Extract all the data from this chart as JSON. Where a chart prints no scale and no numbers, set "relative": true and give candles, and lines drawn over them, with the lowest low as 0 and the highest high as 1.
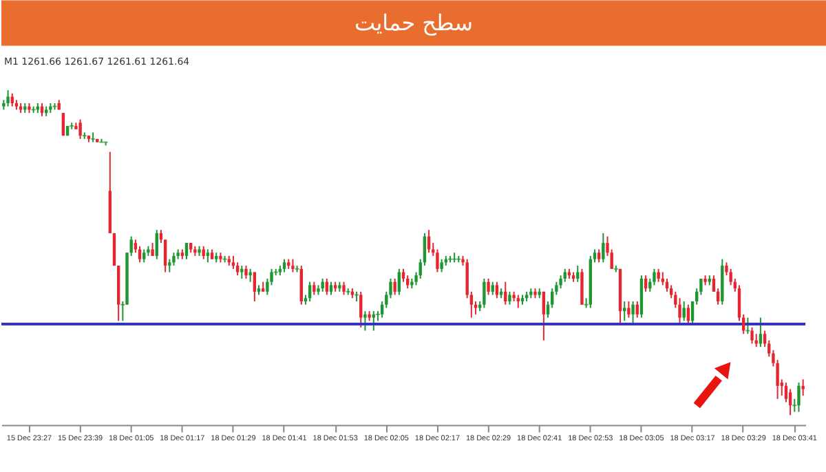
{
  "chart_data": {
    "type": "candlestick",
    "title": "سطح حمایت",
    "relative": true,
    "annotations": [
      "M1 1261.66 1261.67 1261.61 1261.64"
    ],
    "ref_lines": [
      {
        "axis": "y",
        "value": 0.28,
        "color": "#3333cc"
      }
    ],
    "categories": [
      null,
      null,
      null,
      null,
      null,
      null,
      "15 Dec 23:27",
      null,
      null,
      null,
      null,
      null,
      null,
      null,
      null,
      null,
      null,
      null,
      "15 Dec 23:39",
      null,
      null,
      null,
      null,
      null,
      null,
      null,
      null,
      null,
      null,
      null,
      "18 Dec 01:05",
      null,
      null,
      null,
      null,
      null,
      null,
      null,
      null,
      null,
      null,
      null,
      "18 Dec 01:17",
      null,
      null,
      null,
      null,
      null,
      null,
      null,
      null,
      null,
      null,
      null,
      "18 Dec 01:29",
      null,
      null,
      null,
      null,
      null,
      null,
      null,
      null,
      null,
      null,
      null,
      "18 Dec 01:41",
      null,
      null,
      null,
      null,
      null,
      null,
      null,
      null,
      null,
      null,
      null,
      "18 Dec 01:53",
      null,
      null,
      null,
      null,
      null,
      null,
      null,
      null,
      null,
      null,
      null,
      "18 Dec 02:05",
      null,
      null,
      null,
      null,
      null,
      null,
      null,
      null,
      null,
      null,
      null,
      "18 Dec 02:17",
      null,
      null,
      null,
      null,
      null,
      null,
      null,
      null,
      null,
      null,
      null,
      "18 Dec 02:29",
      null,
      null,
      null,
      null,
      null,
      null,
      null,
      null,
      null,
      null,
      null,
      "18 Dec 02:41",
      null,
      null,
      null,
      null,
      null,
      null,
      null,
      null,
      null,
      null,
      null,
      "18 Dec 02:53",
      null,
      null,
      null,
      null,
      null,
      null,
      null,
      null,
      null,
      null,
      null,
      "18 Dec 03:05",
      null,
      null,
      null,
      null,
      null,
      null,
      null,
      null,
      null,
      null,
      null,
      "18 Dec 03:17",
      null,
      null,
      null,
      null,
      null,
      null,
      null,
      null,
      null,
      null,
      null,
      "18 Dec 03:29",
      null,
      null,
      null,
      null,
      null,
      null,
      null,
      null,
      null,
      null,
      null,
      "18 Dec 03:41",
      null,
      null
    ],
    "ohlc": [
      [
        0.95,
        0.97,
        0.94,
        0.96
      ],
      [
        0.96,
        1.0,
        0.95,
        0.98
      ],
      [
        0.98,
        0.99,
        0.95,
        0.96
      ],
      [
        0.96,
        0.97,
        0.94,
        0.95
      ],
      [
        0.95,
        0.96,
        0.93,
        0.94
      ],
      [
        0.94,
        0.96,
        0.93,
        0.95
      ],
      [
        0.95,
        0.96,
        0.93,
        0.94
      ],
      [
        0.94,
        0.95,
        0.93,
        0.94
      ],
      [
        0.94,
        0.96,
        0.93,
        0.95
      ],
      [
        0.95,
        0.96,
        0.92,
        0.93
      ],
      [
        0.93,
        0.95,
        0.92,
        0.94
      ],
      [
        0.94,
        0.96,
        0.93,
        0.95
      ],
      [
        0.95,
        0.96,
        0.94,
        0.95
      ],
      [
        0.96,
        0.97,
        0.94,
        0.94
      ],
      [
        0.93,
        0.93,
        0.86,
        0.86
      ],
      [
        0.86,
        0.89,
        0.86,
        0.89
      ],
      [
        0.89,
        0.9,
        0.88,
        0.89
      ],
      [
        0.89,
        0.9,
        0.88,
        0.88
      ],
      [
        0.9,
        0.91,
        0.85,
        0.86
      ],
      [
        0.86,
        0.87,
        0.85,
        0.86
      ],
      [
        0.86,
        0.86,
        0.84,
        0.85
      ],
      [
        0.85,
        0.87,
        0.84,
        0.85
      ],
      [
        0.85,
        0.85,
        0.84,
        0.84
      ],
      [
        0.84,
        0.85,
        0.84,
        0.84
      ],
      [
        0.84,
        0.84,
        0.83,
        0.84
      ],
      [
        0.69,
        0.81,
        0.56,
        0.56
      ],
      [
        0.56,
        0.56,
        0.46,
        0.46
      ],
      [
        0.46,
        0.46,
        0.29,
        0.34
      ],
      [
        0.34,
        0.35,
        0.29,
        0.34
      ],
      [
        0.34,
        0.5,
        0.34,
        0.5
      ],
      [
        0.5,
        0.55,
        0.49,
        0.54
      ],
      [
        0.53,
        0.54,
        0.5,
        0.51
      ],
      [
        0.51,
        0.52,
        0.47,
        0.48
      ],
      [
        0.48,
        0.51,
        0.47,
        0.5
      ],
      [
        0.5,
        0.52,
        0.49,
        0.51
      ],
      [
        0.51,
        0.53,
        0.49,
        0.49
      ],
      [
        0.49,
        0.57,
        0.48,
        0.56
      ],
      [
        0.56,
        0.57,
        0.53,
        0.54
      ],
      [
        0.54,
        0.54,
        0.44,
        0.46
      ],
      [
        0.46,
        0.48,
        0.44,
        0.47
      ],
      [
        0.47,
        0.5,
        0.46,
        0.49
      ],
      [
        0.49,
        0.51,
        0.48,
        0.5
      ],
      [
        0.5,
        0.51,
        0.48,
        0.49
      ],
      [
        0.49,
        0.53,
        0.48,
        0.53
      ],
      [
        0.53,
        0.53,
        0.5,
        0.51
      ],
      [
        0.51,
        0.52,
        0.49,
        0.5
      ],
      [
        0.5,
        0.52,
        0.49,
        0.51
      ],
      [
        0.51,
        0.52,
        0.48,
        0.49
      ],
      [
        0.49,
        0.51,
        0.47,
        0.5
      ],
      [
        0.5,
        0.51,
        0.48,
        0.48
      ],
      [
        0.48,
        0.5,
        0.47,
        0.49
      ],
      [
        0.49,
        0.5,
        0.47,
        0.48
      ],
      [
        0.48,
        0.49,
        0.47,
        0.48
      ],
      [
        0.48,
        0.49,
        0.46,
        0.47
      ],
      [
        0.47,
        0.49,
        0.45,
        0.46
      ],
      [
        0.46,
        0.47,
        0.43,
        0.44
      ],
      [
        0.44,
        0.46,
        0.42,
        0.45
      ],
      [
        0.45,
        0.46,
        0.42,
        0.43
      ],
      [
        0.43,
        0.45,
        0.41,
        0.44
      ],
      [
        0.44,
        0.44,
        0.35,
        0.38
      ],
      [
        0.38,
        0.4,
        0.37,
        0.39
      ],
      [
        0.39,
        0.41,
        0.38,
        0.38
      ],
      [
        0.38,
        0.42,
        0.37,
        0.41
      ],
      [
        0.41,
        0.45,
        0.4,
        0.44
      ],
      [
        0.44,
        0.45,
        0.43,
        0.44
      ],
      [
        0.44,
        0.46,
        0.43,
        0.45
      ],
      [
        0.45,
        0.48,
        0.44,
        0.47
      ],
      [
        0.47,
        0.48,
        0.45,
        0.46
      ],
      [
        0.46,
        0.48,
        0.44,
        0.45
      ],
      [
        0.45,
        0.46,
        0.44,
        0.45
      ],
      [
        0.45,
        0.46,
        0.34,
        0.35
      ],
      [
        0.35,
        0.37,
        0.34,
        0.36
      ],
      [
        0.36,
        0.41,
        0.35,
        0.4
      ],
      [
        0.4,
        0.41,
        0.37,
        0.38
      ],
      [
        0.38,
        0.4,
        0.37,
        0.39
      ],
      [
        0.39,
        0.42,
        0.38,
        0.41
      ],
      [
        0.41,
        0.42,
        0.37,
        0.38
      ],
      [
        0.38,
        0.41,
        0.37,
        0.4
      ],
      [
        0.4,
        0.41,
        0.38,
        0.39
      ],
      [
        0.39,
        0.41,
        0.38,
        0.4
      ],
      [
        0.4,
        0.41,
        0.37,
        0.38
      ],
      [
        0.38,
        0.39,
        0.37,
        0.38
      ],
      [
        0.38,
        0.39,
        0.36,
        0.37
      ],
      [
        0.37,
        0.38,
        0.35,
        0.37
      ],
      [
        0.37,
        0.38,
        0.27,
        0.3
      ],
      [
        0.3,
        0.32,
        0.26,
        0.31
      ],
      [
        0.31,
        0.32,
        0.29,
        0.3
      ],
      [
        0.3,
        0.32,
        0.26,
        0.31
      ],
      [
        0.31,
        0.32,
        0.29,
        0.31
      ],
      [
        0.31,
        0.35,
        0.3,
        0.34
      ],
      [
        0.34,
        0.38,
        0.33,
        0.37
      ],
      [
        0.37,
        0.42,
        0.36,
        0.41
      ],
      [
        0.41,
        0.42,
        0.37,
        0.38
      ],
      [
        0.38,
        0.45,
        0.37,
        0.44
      ],
      [
        0.44,
        0.45,
        0.41,
        0.42
      ],
      [
        0.42,
        0.43,
        0.39,
        0.4
      ],
      [
        0.4,
        0.42,
        0.39,
        0.41
      ],
      [
        0.41,
        0.44,
        0.4,
        0.43
      ],
      [
        0.43,
        0.48,
        0.42,
        0.47
      ],
      [
        0.47,
        0.56,
        0.46,
        0.55
      ],
      [
        0.55,
        0.57,
        0.5,
        0.51
      ],
      [
        0.51,
        0.53,
        0.49,
        0.5
      ],
      [
        0.5,
        0.51,
        0.44,
        0.45
      ],
      [
        0.45,
        0.48,
        0.44,
        0.47
      ],
      [
        0.47,
        0.49,
        0.46,
        0.48
      ],
      [
        0.48,
        0.49,
        0.47,
        0.48
      ],
      [
        0.48,
        0.5,
        0.47,
        0.48
      ],
      [
        0.48,
        0.49,
        0.47,
        0.48
      ],
      [
        0.48,
        0.49,
        0.46,
        0.47
      ],
      [
        0.47,
        0.48,
        0.36,
        0.37
      ],
      [
        0.37,
        0.38,
        0.3,
        0.34
      ],
      [
        0.34,
        0.35,
        0.31,
        0.33
      ],
      [
        0.33,
        0.35,
        0.32,
        0.34
      ],
      [
        0.34,
        0.42,
        0.33,
        0.41
      ],
      [
        0.41,
        0.42,
        0.37,
        0.38
      ],
      [
        0.38,
        0.41,
        0.37,
        0.4
      ],
      [
        0.4,
        0.41,
        0.36,
        0.37
      ],
      [
        0.37,
        0.39,
        0.36,
        0.38
      ],
      [
        0.38,
        0.41,
        0.34,
        0.35
      ],
      [
        0.35,
        0.38,
        0.34,
        0.37
      ],
      [
        0.37,
        0.38,
        0.35,
        0.36
      ],
      [
        0.36,
        0.37,
        0.33,
        0.35
      ],
      [
        0.35,
        0.37,
        0.34,
        0.36
      ],
      [
        0.36,
        0.38,
        0.35,
        0.37
      ],
      [
        0.37,
        0.39,
        0.36,
        0.38
      ],
      [
        0.38,
        0.39,
        0.36,
        0.37
      ],
      [
        0.37,
        0.39,
        0.36,
        0.38
      ],
      [
        0.38,
        0.38,
        0.23,
        0.31
      ],
      [
        0.31,
        0.35,
        0.3,
        0.34
      ],
      [
        0.34,
        0.39,
        0.33,
        0.38
      ],
      [
        0.38,
        0.41,
        0.37,
        0.4
      ],
      [
        0.4,
        0.43,
        0.39,
        0.42
      ],
      [
        0.42,
        0.45,
        0.41,
        0.44
      ],
      [
        0.44,
        0.45,
        0.42,
        0.43
      ],
      [
        0.43,
        0.44,
        0.41,
        0.42
      ],
      [
        0.42,
        0.46,
        0.41,
        0.44
      ],
      [
        0.44,
        0.45,
        0.34,
        0.34
      ],
      [
        0.34,
        0.36,
        0.33,
        0.34
      ],
      [
        0.34,
        0.49,
        0.33,
        0.48
      ],
      [
        0.48,
        0.51,
        0.47,
        0.5
      ],
      [
        0.5,
        0.51,
        0.47,
        0.48
      ],
      [
        0.48,
        0.56,
        0.47,
        0.53
      ],
      [
        0.53,
        0.55,
        0.49,
        0.5
      ],
      [
        0.5,
        0.51,
        0.45,
        0.45
      ],
      [
        0.45,
        0.46,
        0.44,
        0.45
      ],
      [
        0.45,
        0.45,
        0.28,
        0.32
      ],
      [
        0.32,
        0.35,
        0.29,
        0.33
      ],
      [
        0.33,
        0.35,
        0.3,
        0.31
      ],
      [
        0.31,
        0.35,
        0.28,
        0.34
      ],
      [
        0.34,
        0.35,
        0.3,
        0.31
      ],
      [
        0.31,
        0.43,
        0.3,
        0.42
      ],
      [
        0.42,
        0.43,
        0.38,
        0.39
      ],
      [
        0.39,
        0.42,
        0.38,
        0.41
      ],
      [
        0.41,
        0.45,
        0.4,
        0.44
      ],
      [
        0.44,
        0.45,
        0.41,
        0.42
      ],
      [
        0.42,
        0.44,
        0.4,
        0.41
      ],
      [
        0.41,
        0.42,
        0.38,
        0.39
      ],
      [
        0.39,
        0.4,
        0.36,
        0.37
      ],
      [
        0.37,
        0.38,
        0.33,
        0.34
      ],
      [
        0.34,
        0.36,
        0.28,
        0.3
      ],
      [
        0.3,
        0.35,
        0.29,
        0.33
      ],
      [
        0.33,
        0.34,
        0.28,
        0.29
      ],
      [
        0.29,
        0.35,
        0.28,
        0.35
      ],
      [
        0.35,
        0.39,
        0.34,
        0.38
      ],
      [
        0.38,
        0.42,
        0.37,
        0.42
      ],
      [
        0.42,
        0.43,
        0.4,
        0.41
      ],
      [
        0.41,
        0.43,
        0.4,
        0.42
      ],
      [
        0.42,
        0.43,
        0.38,
        0.38
      ],
      [
        0.38,
        0.39,
        0.34,
        0.35
      ],
      [
        0.35,
        0.48,
        0.34,
        0.46
      ],
      [
        0.46,
        0.47,
        0.43,
        0.44
      ],
      [
        0.44,
        0.45,
        0.4,
        0.41
      ],
      [
        0.41,
        0.42,
        0.38,
        0.39
      ],
      [
        0.39,
        0.4,
        0.29,
        0.3
      ],
      [
        0.3,
        0.31,
        0.25,
        0.26
      ],
      [
        0.26,
        0.3,
        0.25,
        0.26
      ],
      [
        0.26,
        0.27,
        0.22,
        0.23
      ],
      [
        0.23,
        0.25,
        0.21,
        0.22
      ],
      [
        0.22,
        0.3,
        0.21,
        0.25
      ],
      [
        0.25,
        0.26,
        0.21,
        0.22
      ],
      [
        0.22,
        0.23,
        0.18,
        0.19
      ],
      [
        0.19,
        0.2,
        0.15,
        0.16
      ],
      [
        0.16,
        0.17,
        0.05,
        0.09
      ],
      [
        0.1,
        0.11,
        0.06,
        0.09
      ],
      [
        0.09,
        0.1,
        0.04,
        0.05
      ],
      [
        0.07,
        0.08,
        0,
        0.03
      ],
      [
        0.03,
        0.05,
        0.01,
        0.03
      ],
      [
        0.03,
        0.1,
        0.01,
        0.09
      ],
      [
        0.09,
        0.11,
        0.06,
        0.08
      ]
    ]
  }
}
